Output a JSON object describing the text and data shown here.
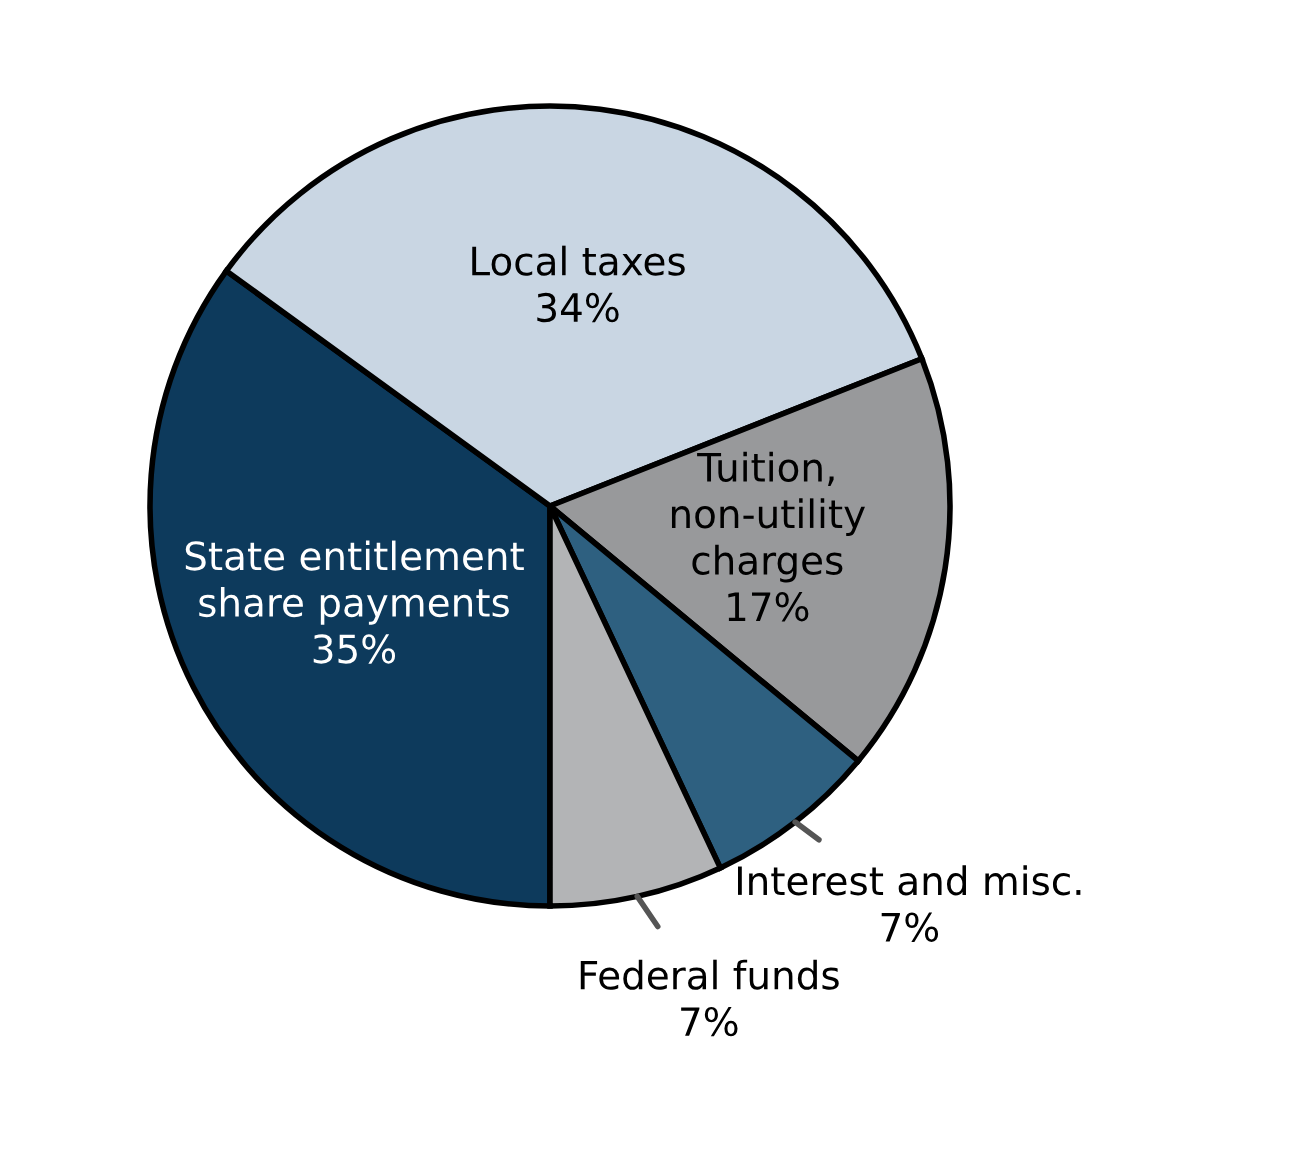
{
  "chart_data": {
    "type": "pie",
    "categories": [
      "State entitlement\nshare payments",
      "Local taxes",
      "Tuition,\nnon-utility\ncharges",
      "Interest and misc.",
      "Federal funds"
    ],
    "values": [
      35,
      34,
      17,
      7,
      7
    ],
    "value_labels": [
      "35%",
      "34%",
      "17%",
      "7%",
      "7%"
    ],
    "colors": [
      "#0d3a5c",
      "#c9d6e3",
      "#98999b",
      "#2e6080",
      "#b3b4b6"
    ],
    "legend": false
  }
}
